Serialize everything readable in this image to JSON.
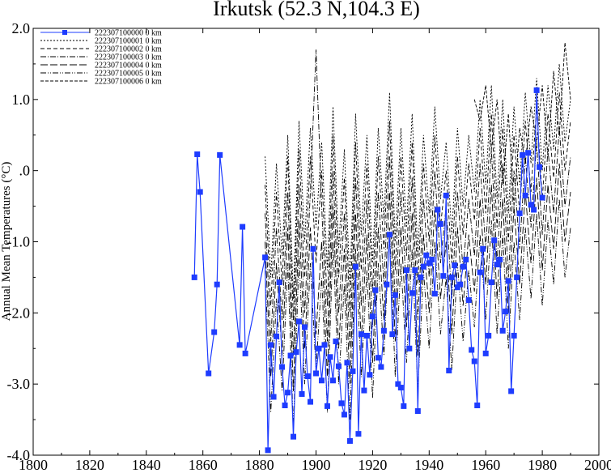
{
  "chart_data": {
    "type": "line",
    "title": "Irkutsk (52.3 N,104.3 E)",
    "xlabel": "",
    "ylabel": "Annual Mean Temperatures (°C)",
    "xlim": [
      1800,
      2000
    ],
    "ylim": [
      -4.0,
      2.0
    ],
    "x_ticks": [
      "1800",
      "1820",
      "1840",
      "1860",
      "1880",
      "1900",
      "1920",
      "1940",
      "1960",
      "1980",
      "2000"
    ],
    "y_ticks": [
      "-4.0",
      "-3.0",
      "-2.0",
      "-1.0",
      ".0",
      "1.0",
      "2.0"
    ],
    "grid": false,
    "legend_position": "top-left",
    "legend": [
      "222307100000 0 km",
      "222307100001 0 km",
      "222307100002 0 km",
      "222307100003 0 km",
      "222307100004 0 km",
      "222307100005 0 km",
      "222307100006 0 km"
    ],
    "series": [
      {
        "color": "#1e3cff",
        "style": "solid-square",
        "x": [
          1857,
          1858,
          1859,
          1862,
          1864,
          1865,
          1866,
          1873,
          1874,
          1875,
          1882,
          1883,
          1884,
          1885,
          1886,
          1887,
          1888,
          1889,
          1890,
          1891,
          1892,
          1893,
          1894,
          1895,
          1896,
          1897,
          1898,
          1899,
          1900,
          1901,
          1902,
          1903,
          1904,
          1905,
          1906,
          1907,
          1908,
          1909,
          1910,
          1911,
          1912,
          1913,
          1914,
          1915,
          1916,
          1917,
          1918,
          1919,
          1920,
          1921,
          1922,
          1923,
          1924,
          1925,
          1926,
          1927,
          1928,
          1929,
          1930,
          1931,
          1932,
          1933,
          1934,
          1935,
          1936,
          1937,
          1938,
          1939,
          1940,
          1941,
          1942,
          1943,
          1944,
          1945,
          1946,
          1947,
          1948,
          1949,
          1950,
          1951,
          1952,
          1953,
          1954,
          1955,
          1956,
          1957,
          1958,
          1959,
          1960,
          1961,
          1962,
          1963,
          1964,
          1965,
          1966,
          1967,
          1968,
          1969,
          1970,
          1971,
          1972,
          1973,
          1974,
          1975,
          1976,
          1977,
          1978,
          1979,
          1980
        ],
        "y": [
          -1.5,
          0.23,
          -0.3,
          -2.85,
          -2.27,
          -1.6,
          0.22,
          -2.45,
          -0.79,
          -2.57,
          -1.22,
          -3.93,
          -2.45,
          -3.18,
          -2.33,
          -1.57,
          -2.76,
          -3.3,
          -3.12,
          -2.6,
          -3.74,
          -2.55,
          -2.12,
          -3.14,
          -2.2,
          -2.89,
          -3.25,
          -1.1,
          -2.85,
          -2.5,
          -2.95,
          -2.45,
          -3.31,
          -2.62,
          -2.95,
          -2.4,
          -2.75,
          -3.27,
          -3.43,
          -2.7,
          -3.8,
          -2.82,
          -1.35,
          -3.7,
          -2.3,
          -3.09,
          -2.32,
          -2.87,
          -2.05,
          -1.68,
          -2.63,
          -2.76,
          -2.25,
          -1.6,
          -0.9,
          -2.3,
          -1.75,
          -3.0,
          -3.05,
          -3.31,
          -1.4,
          -2.5,
          -1.72,
          -1.4,
          -3.38,
          -1.5,
          -1.35,
          -1.19,
          -1.3,
          -1.25,
          -1.73,
          -0.55,
          -0.75,
          -1.48,
          -0.35,
          -2.81,
          -1.5,
          -1.33,
          -1.64,
          -1.6,
          -1.35,
          -1.25,
          -1.82,
          -2.52,
          -2.68,
          -3.3,
          -1.43,
          -1.1,
          -2.57,
          -2.32,
          -1.57,
          -0.98,
          -1.32,
          -1.25,
          -2.25,
          -1.98,
          -1.55,
          -3.1,
          -2.32,
          -1.5,
          -0.6,
          0.22,
          -0.35,
          0.25,
          -0.48,
          -0.55,
          1.13,
          0.05,
          -0.38
        ]
      },
      {
        "style": "dotted",
        "x": [
          1882,
          1884,
          1886,
          1888,
          1890,
          1892,
          1894,
          1896,
          1898,
          1900,
          1902,
          1904,
          1906,
          1908,
          1910,
          1912,
          1914,
          1916,
          1918,
          1920,
          1922,
          1924,
          1926,
          1928,
          1930,
          1932,
          1934,
          1936,
          1938,
          1940,
          1942,
          1944,
          1946,
          1948,
          1950,
          1952,
          1954,
          1956,
          1958,
          1960,
          1962,
          1964,
          1966,
          1968,
          1970,
          1972,
          1974,
          1976,
          1978,
          1980,
          1982,
          1984,
          1986,
          1988,
          1990
        ],
        "y": [
          0.2,
          -1.5,
          0.1,
          -1.2,
          0.5,
          -1.8,
          0.7,
          -1.0,
          0.6,
          -0.8,
          0.4,
          -1.4,
          0.9,
          -1.1,
          0.3,
          -1.6,
          0.8,
          -0.9,
          0.5,
          -1.3,
          0.6,
          -0.7,
          1.1,
          -1.0,
          0.6,
          -0.8,
          0.8,
          -1.2,
          0.5,
          -0.6,
          0.9,
          -0.4,
          0.4,
          -0.9,
          0.6,
          -0.5,
          0.5,
          -0.3,
          1.0,
          -0.2,
          1.2,
          -0.4,
          1.0,
          -0.6,
          0.9,
          -0.2,
          1.1,
          0.1,
          1.3,
          0.0,
          1.2,
          0.3,
          1.5,
          0.4,
          1.0
        ]
      },
      {
        "style": "dashed",
        "x": [
          1882,
          1884,
          1886,
          1888,
          1890,
          1892,
          1894,
          1896,
          1898,
          1900,
          1902,
          1904,
          1906,
          1908,
          1910,
          1912,
          1914,
          1916,
          1918,
          1920,
          1922,
          1924,
          1926,
          1928,
          1930,
          1932,
          1934,
          1936,
          1938,
          1940,
          1942,
          1944,
          1946,
          1948,
          1950,
          1952,
          1954,
          1956,
          1958,
          1960,
          1962,
          1964,
          1966,
          1968,
          1970,
          1972,
          1974,
          1976,
          1978,
          1980,
          1982,
          1984,
          1986,
          1988,
          1990
        ],
        "y": [
          -0.2,
          -1.9,
          -0.3,
          -1.6,
          0.2,
          -2.1,
          0.3,
          -1.5,
          0.2,
          -1.3,
          0.0,
          -1.9,
          0.5,
          -1.5,
          -0.1,
          -2.0,
          0.4,
          -1.4,
          0.1,
          -1.7,
          0.2,
          -1.1,
          0.7,
          -1.4,
          0.2,
          -1.2,
          0.4,
          -1.6,
          0.1,
          -1.0,
          0.5,
          -0.8,
          0.0,
          -1.3,
          0.2,
          -0.9,
          0.1,
          -0.7,
          0.6,
          -0.6,
          0.8,
          -0.8,
          0.6,
          -1.0,
          0.5,
          -0.6,
          0.7,
          -0.3,
          0.9,
          -0.4,
          0.8,
          -0.1,
          1.1,
          0.0,
          0.7
        ]
      },
      {
        "style": "dashdot",
        "x": [
          1882,
          1884,
          1886,
          1888,
          1890,
          1892,
          1894,
          1896,
          1898,
          1900,
          1902,
          1904,
          1906,
          1908,
          1910,
          1912,
          1914,
          1916,
          1918,
          1920,
          1922,
          1924,
          1926,
          1928,
          1930,
          1932,
          1934,
          1936,
          1938,
          1940,
          1942,
          1944,
          1946,
          1948,
          1950,
          1952,
          1954,
          1956,
          1958,
          1960,
          1962,
          1964,
          1966,
          1968,
          1970,
          1972,
          1974,
          1976,
          1978,
          1980,
          1982,
          1984,
          1986,
          1988,
          1990
        ],
        "y": [
          -0.6,
          -2.4,
          -0.8,
          -2.1,
          -0.3,
          -2.6,
          -0.2,
          -2.0,
          -0.3,
          1.7,
          -0.5,
          -2.4,
          0.0,
          -2.0,
          -0.6,
          -2.5,
          -0.1,
          -1.9,
          -0.4,
          -2.2,
          -0.3,
          -1.6,
          0.2,
          -1.9,
          -0.3,
          -1.7,
          -0.1,
          -2.1,
          -0.4,
          -1.5,
          0.0,
          -1.3,
          -0.5,
          -1.8,
          -0.3,
          -1.4,
          -0.4,
          -1.2,
          0.1,
          -1.1,
          0.3,
          -1.3,
          0.1,
          -1.5,
          0.0,
          -1.1,
          0.2,
          -0.8,
          0.4,
          -0.9,
          0.3,
          -0.6,
          0.6,
          -0.5,
          0.2
        ]
      },
      {
        "style": "longdash",
        "x": [
          1882,
          1884,
          1886,
          1888,
          1890,
          1892,
          1894,
          1896,
          1898,
          1900,
          1902,
          1904,
          1906,
          1908,
          1910,
          1912,
          1914,
          1916,
          1918,
          1920,
          1922,
          1924,
          1926,
          1928,
          1930,
          1932,
          1934,
          1936,
          1938,
          1940,
          1942,
          1944,
          1946,
          1948,
          1950,
          1952,
          1954,
          1956,
          1958,
          1960,
          1962,
          1964,
          1966,
          1968,
          1970,
          1972,
          1974,
          1976,
          1978,
          1980,
          1982,
          1984,
          1986,
          1988,
          1990
        ],
        "y": [
          -1.0,
          -2.9,
          -1.3,
          -2.6,
          -0.8,
          -3.1,
          -0.7,
          -2.5,
          -0.8,
          -2.3,
          -1.0,
          -2.9,
          -0.5,
          -2.5,
          -1.1,
          -3.0,
          -0.6,
          -2.4,
          -0.9,
          -2.7,
          -0.8,
          -2.1,
          -0.3,
          -2.4,
          -0.8,
          -2.2,
          -0.6,
          -2.6,
          -0.9,
          -2.0,
          -0.5,
          -1.8,
          -1.0,
          -2.3,
          -0.8,
          -1.9,
          -0.9,
          -1.7,
          -0.4,
          -1.6,
          -0.2,
          -1.8,
          -0.4,
          -2.0,
          -0.5,
          -1.6,
          -0.3,
          -1.3,
          -0.1,
          -1.4,
          -0.2,
          -1.1,
          0.1,
          -1.0,
          -0.3
        ]
      },
      {
        "style": "dashdotdot",
        "x": [
          1882,
          1884,
          1886,
          1888,
          1890,
          1892,
          1894,
          1896,
          1898,
          1900,
          1902,
          1904,
          1906,
          1908,
          1910,
          1912,
          1914,
          1916,
          1918,
          1920,
          1922,
          1924,
          1926,
          1928,
          1930,
          1932,
          1934,
          1936,
          1938,
          1940,
          1942,
          1944,
          1946,
          1948,
          1950,
          1952,
          1954,
          1956,
          1958,
          1960,
          1962,
          1964,
          1966,
          1968,
          1970,
          1972,
          1974,
          1976,
          1978,
          1980,
          1982,
          1984,
          1986,
          1988,
          1990
        ],
        "y": [
          -1.4,
          -3.4,
          -1.8,
          -3.1,
          -1.3,
          -3.6,
          -1.2,
          -3.0,
          -1.3,
          -2.8,
          -1.5,
          -3.4,
          -1.0,
          -3.0,
          -1.6,
          -3.5,
          -1.1,
          -2.9,
          -1.4,
          -3.2,
          -1.3,
          -2.6,
          -0.8,
          -2.9,
          -1.3,
          -2.7,
          -1.1,
          -3.1,
          -1.4,
          -2.5,
          -1.0,
          -2.3,
          -1.5,
          -2.8,
          -1.3,
          -2.4,
          -1.4,
          -2.2,
          -0.9,
          -2.1,
          -0.7,
          -2.3,
          -0.9,
          -2.5,
          -1.0,
          -2.1,
          -0.8,
          -1.8,
          -0.6,
          -1.9,
          -0.7,
          -1.6,
          -0.4,
          -1.5,
          -0.8
        ]
      },
      {
        "style": "shortdash",
        "x": [
          1956,
          1958,
          1960,
          1962,
          1964,
          1966,
          1968,
          1970,
          1972,
          1974,
          1976,
          1978,
          1980,
          1982,
          1984,
          1986,
          1988,
          1990
        ],
        "y": [
          1.0,
          0.7,
          1.2,
          0.3,
          1.0,
          -0.2,
          0.8,
          -0.5,
          0.6,
          0.1,
          0.9,
          0.4,
          1.2,
          0.2,
          1.4,
          0.5,
          1.8,
          1.0
        ]
      }
    ]
  }
}
